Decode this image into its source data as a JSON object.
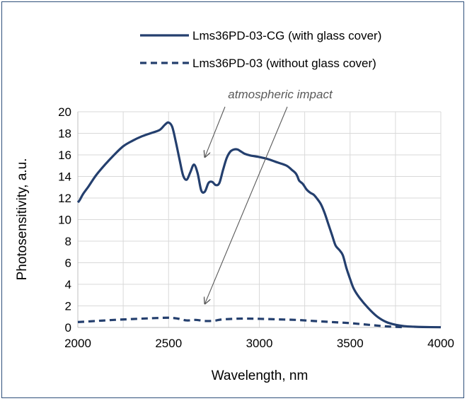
{
  "chart_data": {
    "type": "line",
    "title": "",
    "xlabel": "Wavelength, nm",
    "ylabel": "Photosensitivity, a.u.",
    "xlim": [
      2000,
      4000
    ],
    "ylim": [
      0,
      20
    ],
    "x_ticks": [
      2000,
      2500,
      3000,
      3500,
      4000
    ],
    "y_ticks": [
      0,
      2,
      4,
      6,
      8,
      10,
      12,
      14,
      16,
      18,
      20
    ],
    "x_gridline_step": 250,
    "grid": true,
    "legend_position": "top-right",
    "series": [
      {
        "name": "Lms36PD-03-CG (with glass cover)",
        "style": "solid",
        "color": "#243f6e",
        "points": [
          [
            2000,
            11.6
          ],
          [
            2010,
            11.8
          ],
          [
            2030,
            12.4
          ],
          [
            2060,
            13.1
          ],
          [
            2100,
            14.1
          ],
          [
            2150,
            15.1
          ],
          [
            2200,
            16.0
          ],
          [
            2250,
            16.8
          ],
          [
            2300,
            17.3
          ],
          [
            2350,
            17.7
          ],
          [
            2400,
            18.0
          ],
          [
            2450,
            18.3
          ],
          [
            2480,
            18.8
          ],
          [
            2500,
            19.0
          ],
          [
            2520,
            18.6
          ],
          [
            2540,
            17.2
          ],
          [
            2560,
            15.6
          ],
          [
            2580,
            14.1
          ],
          [
            2600,
            13.7
          ],
          [
            2620,
            14.4
          ],
          [
            2640,
            15.1
          ],
          [
            2660,
            14.3
          ],
          [
            2680,
            12.7
          ],
          [
            2700,
            12.6
          ],
          [
            2720,
            13.4
          ],
          [
            2740,
            13.5
          ],
          [
            2760,
            13.2
          ],
          [
            2780,
            13.4
          ],
          [
            2800,
            14.6
          ],
          [
            2820,
            15.7
          ],
          [
            2840,
            16.3
          ],
          [
            2860,
            16.5
          ],
          [
            2880,
            16.5
          ],
          [
            2900,
            16.3
          ],
          [
            2920,
            16.1
          ],
          [
            2950,
            15.95
          ],
          [
            3000,
            15.8
          ],
          [
            3050,
            15.6
          ],
          [
            3100,
            15.3
          ],
          [
            3150,
            15.0
          ],
          [
            3180,
            14.6
          ],
          [
            3200,
            14.3
          ],
          [
            3210,
            14.0
          ],
          [
            3220,
            13.6
          ],
          [
            3240,
            13.3
          ],
          [
            3260,
            12.8
          ],
          [
            3280,
            12.5
          ],
          [
            3300,
            12.3
          ],
          [
            3320,
            11.9
          ],
          [
            3340,
            11.4
          ],
          [
            3360,
            10.6
          ],
          [
            3380,
            9.6
          ],
          [
            3400,
            8.6
          ],
          [
            3420,
            7.6
          ],
          [
            3440,
            7.2
          ],
          [
            3460,
            6.7
          ],
          [
            3480,
            5.5
          ],
          [
            3500,
            4.5
          ],
          [
            3520,
            3.6
          ],
          [
            3550,
            2.8
          ],
          [
            3600,
            1.8
          ],
          [
            3650,
            1.0
          ],
          [
            3700,
            0.5
          ],
          [
            3750,
            0.25
          ],
          [
            3800,
            0.12
          ],
          [
            3850,
            0.07
          ],
          [
            3900,
            0.04
          ],
          [
            4000,
            0.02
          ]
        ]
      },
      {
        "name": "Lms36PD-03 (without glass cover)",
        "style": "dashed",
        "color": "#243f6e",
        "points": [
          [
            2000,
            0.5
          ],
          [
            2100,
            0.6
          ],
          [
            2200,
            0.7
          ],
          [
            2300,
            0.78
          ],
          [
            2400,
            0.85
          ],
          [
            2500,
            0.9
          ],
          [
            2550,
            0.82
          ],
          [
            2600,
            0.65
          ],
          [
            2650,
            0.7
          ],
          [
            2700,
            0.6
          ],
          [
            2750,
            0.62
          ],
          [
            2800,
            0.75
          ],
          [
            2900,
            0.82
          ],
          [
            3000,
            0.8
          ],
          [
            3100,
            0.75
          ],
          [
            3200,
            0.7
          ],
          [
            3300,
            0.6
          ],
          [
            3400,
            0.5
          ],
          [
            3500,
            0.4
          ],
          [
            3600,
            0.25
          ],
          [
            3700,
            0.1
          ],
          [
            3800,
            0.02
          ]
        ]
      }
    ],
    "annotation": {
      "text": "atmospheric impact",
      "arrow_targets": [
        [
          2700,
          15.8
        ],
        [
          2700,
          2.2
        ]
      ]
    }
  }
}
